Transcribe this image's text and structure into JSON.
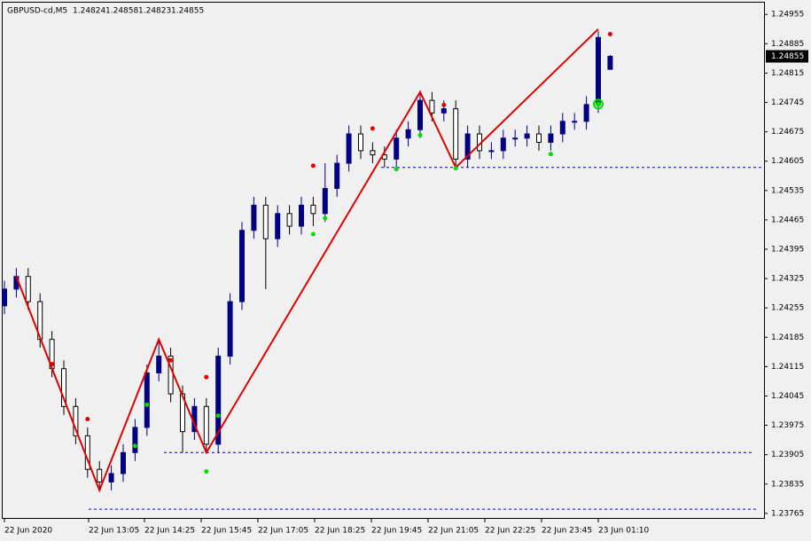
{
  "chart_data": {
    "type": "candlestick",
    "symbol": "GBPUSD-cd,M5",
    "header_ohlc": [
      "1.24824",
      "1.24858",
      "1.24823",
      "1.24855"
    ],
    "open": [
      1.2426,
      1.243,
      1.2433,
      1.2427,
      1.2418,
      1.2411,
      1.2402,
      1.2395,
      1.2387,
      1.2384,
      1.2386,
      1.2391,
      1.2397,
      1.241,
      1.2414,
      1.2405,
      1.2396,
      1.2402,
      1.2393,
      1.2414,
      1.2427,
      1.2444,
      1.245,
      1.2442,
      1.2448,
      1.2445,
      1.245,
      1.2448,
      1.2454,
      1.246,
      1.2467,
      1.2463,
      1.2462,
      1.2461,
      1.2466,
      1.2468,
      1.2475,
      1.2472,
      1.2473,
      1.2461,
      1.2467,
      1.2463,
      1.2463,
      1.2466,
      1.2466,
      1.2467,
      1.2465,
      1.2467,
      1.247,
      1.247,
      1.2474,
      1.24824
    ],
    "high": [
      1.2432,
      1.2435,
      1.2435,
      1.2429,
      1.242,
      1.2413,
      1.2404,
      1.2397,
      1.2389,
      1.2388,
      1.2393,
      1.2399,
      1.2412,
      1.2418,
      1.2416,
      1.2407,
      1.2404,
      1.2404,
      1.2416,
      1.2429,
      1.2446,
      1.2452,
      1.2452,
      1.245,
      1.245,
      1.2452,
      1.2452,
      1.246,
      1.2462,
      1.2469,
      1.2469,
      1.2465,
      1.2464,
      1.2468,
      1.247,
      1.2477,
      1.2477,
      1.2475,
      1.2475,
      1.2469,
      1.2469,
      1.2465,
      1.2468,
      1.2468,
      1.2469,
      1.2469,
      1.2469,
      1.2472,
      1.2472,
      1.2476,
      1.24915,
      1.24858
    ],
    "low": [
      1.2424,
      1.2428,
      1.2425,
      1.2416,
      1.2409,
      1.24,
      1.2393,
      1.2385,
      1.2382,
      1.2382,
      1.2384,
      1.2389,
      1.2395,
      1.2408,
      1.2403,
      1.2391,
      1.2394,
      1.2391,
      1.2391,
      1.2412,
      1.2425,
      1.2442,
      1.243,
      1.244,
      1.2443,
      1.2443,
      1.2445,
      1.2446,
      1.2452,
      1.2458,
      1.2461,
      1.246,
      1.2459,
      1.2459,
      1.2464,
      1.2466,
      1.247,
      1.247,
      1.2459,
      1.2459,
      1.2461,
      1.2461,
      1.2461,
      1.2464,
      1.2464,
      1.2463,
      1.2463,
      1.2465,
      1.2468,
      1.2468,
      1.2472,
      1.24823
    ],
    "close": [
      1.243,
      1.2433,
      1.2427,
      1.2418,
      1.2411,
      1.2402,
      1.2395,
      1.2387,
      1.2384,
      1.2386,
      1.2391,
      1.2397,
      1.241,
      1.2414,
      1.2405,
      1.2396,
      1.2402,
      1.2393,
      1.2414,
      1.2427,
      1.2444,
      1.245,
      1.2442,
      1.2448,
      1.2445,
      1.245,
      1.2448,
      1.2454,
      1.246,
      1.2467,
      1.2463,
      1.2462,
      1.2461,
      1.2466,
      1.2468,
      1.2475,
      1.2472,
      1.2473,
      1.2461,
      1.2467,
      1.2463,
      1.2463,
      1.2466,
      1.2466,
      1.2467,
      1.2465,
      1.2467,
      1.247,
      1.247,
      1.2474,
      1.249,
      1.24855
    ],
    "current_price_label": "1.24855",
    "zigzag": {
      "color": "#e00000",
      "x": [
        1,
        8,
        13,
        17,
        35,
        38,
        50
      ],
      "values": [
        1.2433,
        1.2382,
        1.2418,
        1.2391,
        1.2477,
        1.2459,
        1.2492
      ]
    },
    "levels": [
      1.2459,
      1.2391,
      1.23775
    ],
    "up_dots": {
      "color": "#e00000",
      "x": [
        4,
        7,
        14,
        17,
        26,
        31,
        37,
        51
      ],
      "values": [
        1.24121,
        1.2399,
        1.2413,
        1.2409,
        1.24594,
        1.24683,
        1.24739,
        1.24908
      ]
    },
    "down_dots": {
      "color": "#00e000",
      "x": [
        11,
        12,
        18,
        17,
        26,
        27,
        33,
        35,
        38,
        46,
        50
      ],
      "values": [
        1.23926,
        1.24024,
        1.23998,
        1.23865,
        1.24431,
        1.24469,
        1.24586,
        1.24667,
        1.24588,
        1.24622,
        1.24741
      ]
    },
    "ylim": [
      1.23752,
      1.24983
    ],
    "yticks": [
      {
        "value": 1.24955,
        "label": "1.24955"
      },
      {
        "value": 1.24885,
        "label": "1.24885"
      },
      {
        "value": 1.24815,
        "label": "1.24815"
      },
      {
        "value": 1.24745,
        "label": "1.24745"
      },
      {
        "value": 1.24675,
        "label": "1.24675"
      },
      {
        "value": 1.24605,
        "label": "1.24605"
      },
      {
        "value": 1.24535,
        "label": "1.24535"
      },
      {
        "value": 1.24465,
        "label": "1.24465"
      },
      {
        "value": 1.24395,
        "label": "1.24395"
      },
      {
        "value": 1.24325,
        "label": "1.24325"
      },
      {
        "value": 1.24255,
        "label": "1.24255"
      },
      {
        "value": 1.24185,
        "label": "1.24185"
      },
      {
        "value": 1.24115,
        "label": "1.24115"
      },
      {
        "value": 1.24045,
        "label": "1.24045"
      },
      {
        "value": 1.23975,
        "label": "1.23975"
      },
      {
        "value": 1.23905,
        "label": "1.23905"
      },
      {
        "value": 1.23835,
        "label": "1.23835"
      },
      {
        "value": 1.23765,
        "label": "1.23765"
      }
    ],
    "xticks": [
      {
        "value": 0,
        "label": "22 Jun 2020"
      },
      {
        "value": 7.09,
        "label": "22 Jun 13:05"
      },
      {
        "value": 11.79,
        "label": "22 Jun 14:25"
      },
      {
        "value": 16.57,
        "label": "22 Jun 15:45"
      },
      {
        "value": 21.34,
        "label": "22 Jun 17:05"
      },
      {
        "value": 26.12,
        "label": "22 Jun 18:25"
      },
      {
        "value": 30.9,
        "label": "22 Jun 19:45"
      },
      {
        "value": 35.67,
        "label": "22 Jun 21:05"
      },
      {
        "value": 40.45,
        "label": "22 Jun 22:25"
      },
      {
        "value": 45.22,
        "label": "22 Jun 23:45"
      },
      {
        "value": 50,
        "label": "23 Jun 01:10"
      }
    ]
  }
}
